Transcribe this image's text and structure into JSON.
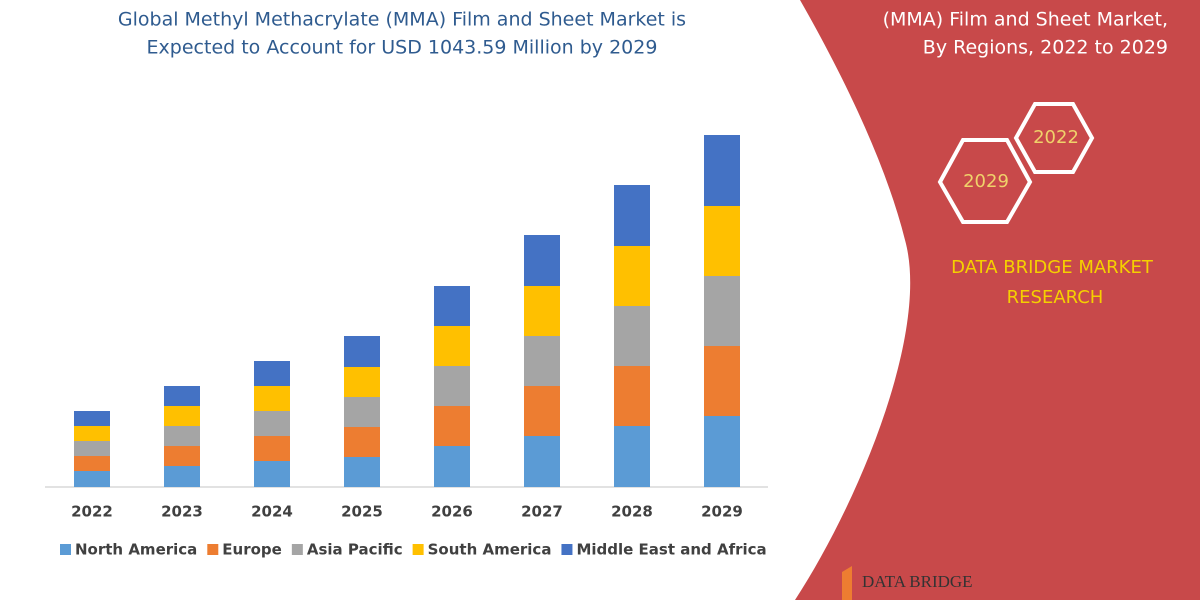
{
  "chart_data": {
    "type": "stacked_bar",
    "title": [
      "Global Methyl Methacrylate (MMA) Film and Sheet Market is",
      "Expected to Account for USD 1043.59 Million by 2029"
    ],
    "categories": [
      "2022",
      "2023",
      "2024",
      "2025",
      "2026",
      "2027",
      "2028",
      "2029"
    ],
    "series": [
      {
        "name": "North America",
        "color": "#5b9bd5",
        "values": [
          16,
          21,
          26,
          30,
          41,
          51,
          61,
          71
        ]
      },
      {
        "name": "Europe",
        "color": "#ed7d31",
        "values": [
          15,
          20,
          25,
          30,
          40,
          50,
          60,
          70
        ]
      },
      {
        "name": "Asia Pacific",
        "color": "#a5a5a5",
        "values": [
          15,
          20,
          25,
          30,
          40,
          50,
          60,
          70
        ]
      },
      {
        "name": "South America",
        "color": "#ffc000",
        "values": [
          15,
          20,
          25,
          30,
          40,
          50,
          60,
          70
        ]
      },
      {
        "name": "Middle East and Africa",
        "color": "#4472c4",
        "values": [
          15,
          20,
          25,
          31,
          40,
          51,
          61,
          71
        ]
      }
    ],
    "legend": "bottom"
  },
  "side_panel": {
    "title_lines": [
      "(MMA) Film and Sheet Market,",
      "By Regions, 2022 to 2029"
    ],
    "badges": [
      "2022",
      "2029"
    ],
    "brand_lines": [
      "DATA BRIDGE MARKET",
      "RESEARCH"
    ],
    "logo": "DATA BRIDGE"
  }
}
